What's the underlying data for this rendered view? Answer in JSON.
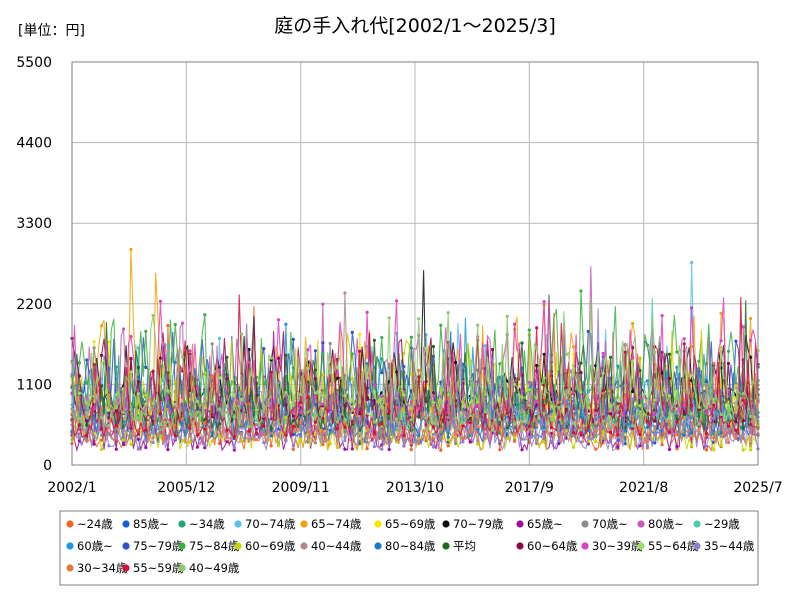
{
  "chart_data": {
    "type": "line",
    "title": "庭の手入れ代[2002/1～2025/3]",
    "unit_label": "[単位：円]",
    "xlabel": "",
    "ylabel": "",
    "x_range": [
      "2002/1",
      "2025/7"
    ],
    "x_tick_labels": [
      "2002/1",
      "2005/12",
      "2009/11",
      "2013/10",
      "2017/9",
      "2021/8",
      "2025/7"
    ],
    "y_range": [
      0,
      5500
    ],
    "y_ticks": [
      0,
      1100,
      2200,
      3300,
      4400,
      5500
    ],
    "grid": true,
    "legend_position": "bottom",
    "series": [
      {
        "name": "~24歳",
        "color": "#f26522",
        "marker": "circle"
      },
      {
        "name": "85歳~",
        "color": "#1a5fd6",
        "marker": "circle"
      },
      {
        "name": "~34歳",
        "color": "#1fa67a",
        "marker": "circle"
      },
      {
        "name": "70~74歳",
        "color": "#5bc0eb",
        "marker": "circle"
      },
      {
        "name": "65~74歳",
        "color": "#f0a30a",
        "marker": "circle"
      },
      {
        "name": "65~69歳",
        "color": "#f5e600",
        "marker": "circle"
      },
      {
        "name": "70~79歳",
        "color": "#111111",
        "marker": "circle"
      },
      {
        "name": "65歳~",
        "color": "#9b0f9b",
        "marker": "circle"
      },
      {
        "name": "70歳~",
        "color": "#8c8c8c",
        "marker": "circle"
      },
      {
        "name": "80歳~",
        "color": "#c65bb5",
        "marker": "circle"
      },
      {
        "name": "~29歳",
        "color": "#4fc9b0",
        "marker": "circle"
      },
      {
        "name": "60歳~",
        "color": "#1c9ad6",
        "marker": "circle"
      },
      {
        "name": "75~79歳",
        "color": "#3050c8",
        "marker": "circle"
      },
      {
        "name": "75~84歳",
        "color": "#3cb043",
        "marker": "circle"
      },
      {
        "name": "60~69歳",
        "color": "#c8d400",
        "marker": "circle"
      },
      {
        "name": "40~44歳",
        "color": "#b08a8a",
        "marker": "circle"
      },
      {
        "name": "80~84歳",
        "color": "#1f78c8",
        "marker": "circle"
      },
      {
        "name": "平均",
        "color": "#1e6b1e",
        "marker": "circle"
      },
      {
        "name": "60~64歳",
        "color": "#8b0a4a",
        "marker": "circle"
      },
      {
        "name": "30~39歳",
        "color": "#e040c0",
        "marker": "circle"
      },
      {
        "name": "55~64歳",
        "color": "#9be05a",
        "marker": "circle"
      },
      {
        "name": "35~44歳",
        "color": "#9080d0",
        "marker": "circle"
      },
      {
        "name": "30~34歳",
        "color": "#e8764a",
        "marker": "circle"
      },
      {
        "name": "55~59歳",
        "color": "#d01040",
        "marker": "circle"
      },
      {
        "name": "40~49歳",
        "color": "#8cc86a",
        "marker": "circle"
      }
    ]
  }
}
